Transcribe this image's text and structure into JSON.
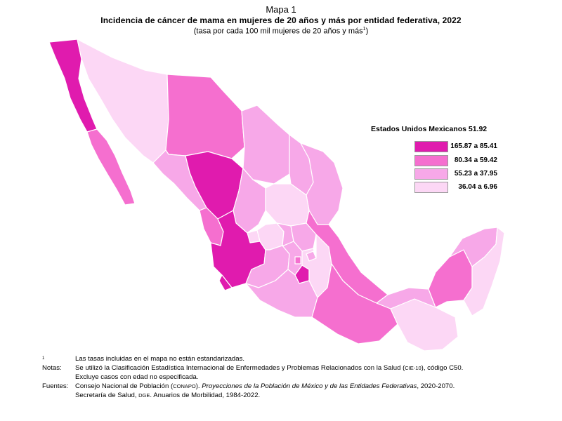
{
  "header": {
    "map_number": "Mapa 1",
    "title": "Incidencia de cáncer de mama en mujeres de 20 años y más por entidad federativa, 2022",
    "subtitle": "(tasa por cada 100 mil mujeres de 20 años y más",
    "subtitle_sup": "1",
    "subtitle_close": ")"
  },
  "legend": {
    "title": "Estados Unidos Mexicanos 51.92",
    "classes": [
      {
        "label": "165.87 a 85.41",
        "color": "#e01bae"
      },
      {
        "label": "80.34 a 59.42",
        "color": "#f56fcf"
      },
      {
        "label": "55.23 a 37.95",
        "color": "#f7a8e8"
      },
      {
        "label": "36.04 a 6.96",
        "color": "#fcd7f5"
      }
    ]
  },
  "map": {
    "background": "#ffffff",
    "state_class": {
      "Baja California": 0,
      "Baja California Sur": 1,
      "Sonora": 3,
      "Chihuahua": 1,
      "Coahuila": 2,
      "Nuevo León": 2,
      "Tamaulipas": 2,
      "Sinaloa": 2,
      "Durango": 0,
      "Zacatecas": 2,
      "San Luis Potosí": 3,
      "Nayarit": 1,
      "Aguascalientes": 3,
      "Jalisco": 0,
      "Guanajuato": 3,
      "Querétaro": 2,
      "Hidalgo": 2,
      "Colima": 0,
      "Michoacán": 2,
      "Estado de México": 2,
      "Ciudad de México": 1,
      "Morelos": 0,
      "Tlaxcala": 2,
      "Puebla": 3,
      "Veracruz": 1,
      "Guerrero": 2,
      "Oaxaca": 1,
      "Chiapas": 3,
      "Tabasco": 2,
      "Campeche": 1,
      "Yucatán": 2,
      "Quintana Roo": 3
    }
  },
  "notes": [
    {
      "label_sup": "1",
      "label": "",
      "text": "Las tasas incluidas en el mapa no están estandarizadas."
    },
    {
      "label": "Notas:",
      "text_a": "Se utilizó la Clasificación Estadística Internacional de Enfermedades y Problemas Relacionados con la Salud (",
      "text_sc": "CIE-10",
      "text_b": "), código C50."
    },
    {
      "label": "",
      "text": "Excluye casos con edad no especificada."
    },
    {
      "label": "Fuentes:",
      "text_a": "Consejo Nacional de Población (",
      "text_sc": "CONAPO",
      "text_b": "). ",
      "text_i": "Proyecciones de la Población de México y de las Entidades Federativas",
      "text_c": ", 2020-2070."
    },
    {
      "label": "",
      "text_a": "Secretaría de Salud, ",
      "text_sc": "DGE",
      "text_b": ". Anuarios de Morbilidad, 1984-2022."
    }
  ]
}
